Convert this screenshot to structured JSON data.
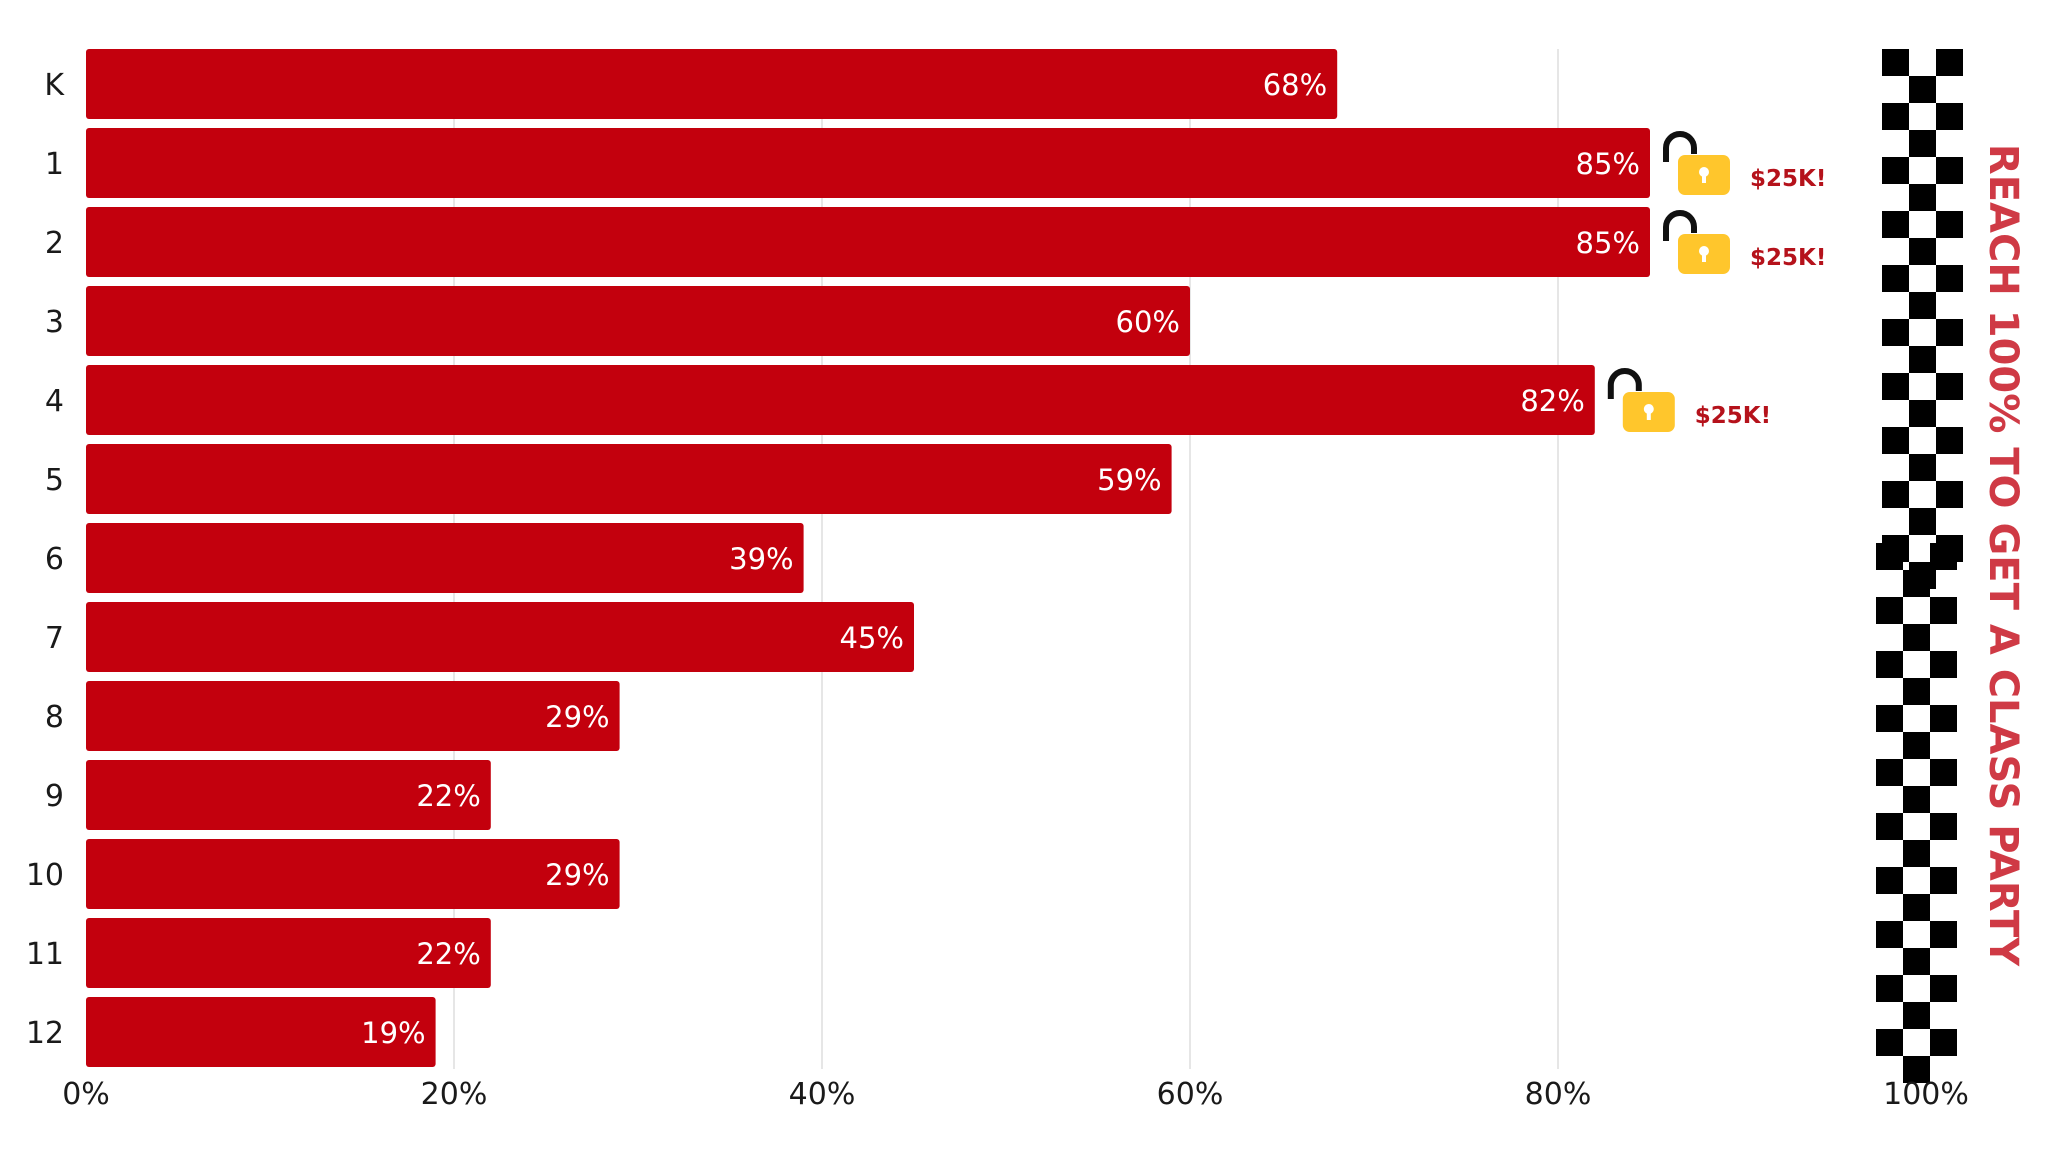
{
  "chart_data": {
    "type": "bar",
    "orientation": "horizontal",
    "categories": [
      "K",
      "1",
      "2",
      "3",
      "4",
      "5",
      "6",
      "7",
      "8",
      "9",
      "10",
      "11",
      "12"
    ],
    "values": [
      68,
      85,
      85,
      60,
      82,
      59,
      39,
      45,
      29,
      22,
      29,
      22,
      19
    ],
    "value_labels": [
      "68%",
      "85%",
      "85%",
      "60%",
      "82%",
      "59%",
      "39%",
      "45%",
      "29%",
      "22%",
      "29%",
      "22%",
      "19%"
    ],
    "xlim": [
      0,
      100
    ],
    "x_ticks": [
      0,
      20,
      40,
      60,
      80,
      100
    ],
    "x_tick_labels": [
      "0%",
      "20%",
      "40%",
      "60%",
      "80%",
      "100%"
    ],
    "grid": true,
    "bar_color": "#c3000d",
    "grid_color": "#dddddd",
    "annotations": [
      {
        "category": "1",
        "icon": "unlocked-padlock-icon",
        "text": "$25K!"
      },
      {
        "category": "2",
        "icon": "unlocked-padlock-icon",
        "text": "$25K!"
      },
      {
        "category": "4",
        "icon": "unlocked-padlock-icon",
        "text": "$25K!"
      }
    ],
    "goal_text": "REACH 100% TO GET A CLASS PARTY",
    "goal_marker": "checkered-finish-line-icon",
    "padlock_color": "#ffc62c",
    "reward_text_color": "#b5121b",
    "goal_text_color": "#cf3a45"
  }
}
